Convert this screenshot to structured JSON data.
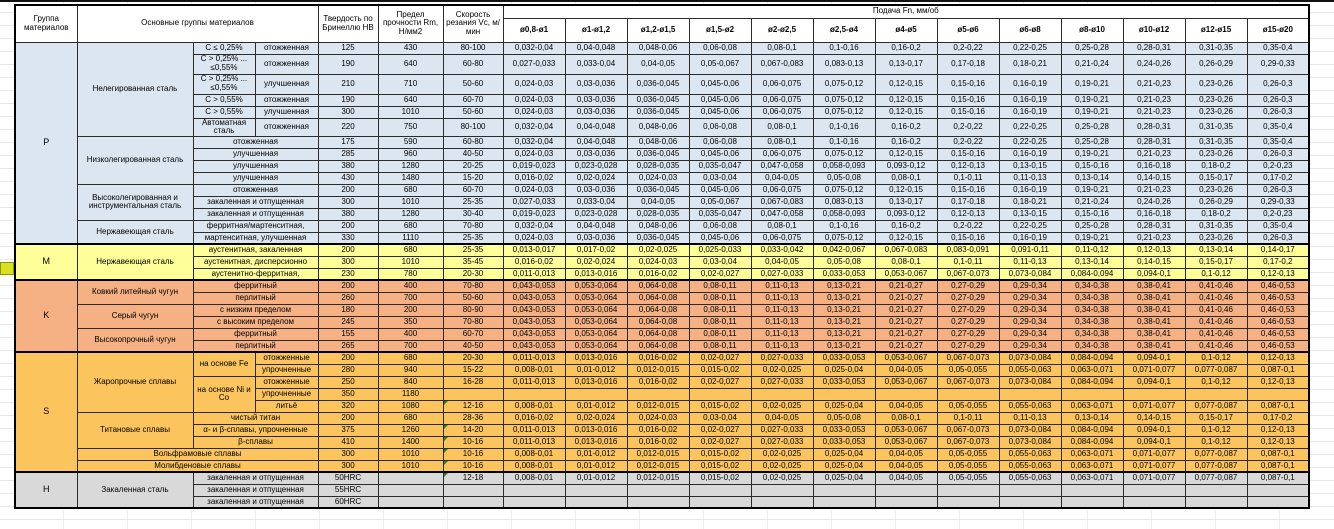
{
  "header": {
    "col_group": "Группа материалов",
    "col_main": "Основные группы материалов",
    "col_hb": "Твердость по Бринеллю НВ",
    "col_rm": "Предел прочности Rm, Н/мм2",
    "col_vc": "Скорость резания Vc, м/мин",
    "col_feed": "Подача Fn, мм/об",
    "diameters": [
      "ø0,8-ø1",
      "ø1-ø1,2",
      "ø1,2-ø1,5",
      "ø1,5-ø2",
      "ø2-ø2,5",
      "ø2,5-ø4",
      "ø4-ø5",
      "ø5-ø6",
      "ø6-ø8",
      "ø8-ø10",
      "ø10-ø12",
      "ø12-ø15",
      "ø15-ø20"
    ]
  },
  "colors": {
    "group_p": "#dce6f1",
    "group_m": "#ffff99",
    "group_k": "#f5b183",
    "group_s": "#fcc45c",
    "group_h": "#d9d9d9",
    "note_triangle": "#2e7d32",
    "margin_highlight": "#d9e021"
  },
  "table": {
    "feed_sets": {
      "FA": [
        "0,032-0,04",
        "0,04-0,048",
        "0,048-0,06",
        "0,06-0,08",
        "0,08-0,1",
        "0,1-0,16",
        "0,16-0,2",
        "0,2-0,22",
        "0,22-0,25",
        "0,25-0,28",
        "0,28-0,31",
        "0,31-0,35",
        "0,35-0,4"
      ],
      "FB": [
        "0,027-0,033",
        "0,033-0,04",
        "0,04-0,05",
        "0,05-0,067",
        "0,067-0,083",
        "0,083-0,13",
        "0,13-0,17",
        "0,17-0,18",
        "0,18-0,21",
        "0,21-0,24",
        "0,24-0,26",
        "0,26-0,29",
        "0,29-0,33"
      ],
      "FC": [
        "0,024-0,03",
        "0,03-0,036",
        "0,036-0,045",
        "0,045-0,06",
        "0,06-0,075",
        "0,075-0,12",
        "0,12-0,15",
        "0,15-0,16",
        "0,16-0,19",
        "0,19-0,21",
        "0,21-0,23",
        "0,23-0,26",
        "0,26-0,3"
      ],
      "FD": [
        "0,019-0,023",
        "0,023-0,028",
        "0,028-0,035",
        "0,035-0,047",
        "0,047-0,058",
        "0,058-0,093",
        "0,093-0,12",
        "0,12-0,13",
        "0,13-0,15",
        "0,15-0,16",
        "0,16-0,18",
        "0,18-0,2",
        "0,2-0,23"
      ],
      "FE": [
        "0,016-0,02",
        "0,02-0,024",
        "0,024-0,03",
        "0,03-0,04",
        "0,04-0,05",
        "0,05-0,08",
        "0,08-0,1",
        "0,1-0,11",
        "0,11-0,13",
        "0,13-0,14",
        "0,14-0,15",
        "0,15-0,17",
        "0,17-0,2"
      ],
      "FM1": [
        "0,013-0,017",
        "0,017-0,02",
        "0,02-0,025",
        "0,025-0,033",
        "0,033-0,042",
        "0,042-0,067",
        "0,067-0,083",
        "0,083-0,091",
        "0,091-0,11",
        "0,11-0,12",
        "0,12-0,13",
        "0,13-0,14",
        "0,14-0,17"
      ],
      "FM3": [
        "0,011-0,013",
        "0,013-0,016",
        "0,016-0,02",
        "0,02-0,027",
        "0,027-0,033",
        "0,033-0,053",
        "0,053-0,067",
        "0,067-0,073",
        "0,073-0,084",
        "0,084-0,094",
        "0,094-0,1",
        "0,1-0,12",
        "0,12-0,13"
      ],
      "FK": [
        "0,043-0,053",
        "0,053-0,064",
        "0,064-0,08",
        "0,08-0,11",
        "0,11-0,13",
        "0,13-0,21",
        "0,21-0,27",
        "0,27-0,29",
        "0,29-0,34",
        "0,34-0,38",
        "0,38-0,41",
        "0,41-0,46",
        "0,46-0,53"
      ],
      "FS2": [
        "0,008-0,01",
        "0,01-0,012",
        "0,012-0,015",
        "0,015-0,02",
        "0,02-0,025",
        "0,025-0,04",
        "0,04-0,05",
        "0,05-0,055",
        "0,055-0,063",
        "0,063-0,071",
        "0,071-0,077",
        "0,077-0,087",
        "0,087-0,1"
      ],
      "BL": [
        "",
        "",
        "",
        "",
        "",
        "",
        "",
        "",
        "",
        "",
        "",
        "",
        ""
      ]
    },
    "rows": [
      {
        "g": "p",
        "cells": [
          {
            "t": "P",
            "rs": 15,
            "lbl": 1
          },
          {
            "t": "Нелегированная сталь",
            "rs": 6
          },
          {
            "t": "C ≤ 0,25%"
          },
          {
            "t": "отожженная"
          }
        ],
        "hb": "125",
        "rm": "430",
        "vc": "80-100",
        "f": "FA"
      },
      {
        "g": "p",
        "h": "tall",
        "cells": [
          {
            "t": "C > 0,25% ... ≤0,55%"
          },
          {
            "t": "отожженная"
          }
        ],
        "hb": "190",
        "rm": "640",
        "vc": "60-80",
        "f": "FB"
      },
      {
        "g": "p",
        "h": "tall",
        "cells": [
          {
            "t": "C > 0,25% ... ≤0,55%"
          },
          {
            "t": "улучшенная"
          }
        ],
        "hb": "210",
        "rm": "710",
        "vc": "50-60",
        "f": "FC"
      },
      {
        "g": "p",
        "cells": [
          {
            "t": "C > 0,55%"
          },
          {
            "t": "отожженная"
          }
        ],
        "hb": "190",
        "rm": "640",
        "vc": "60-70",
        "f": "FC"
      },
      {
        "g": "p",
        "cells": [
          {
            "t": "C > 0,55%"
          },
          {
            "t": "улучшенная"
          }
        ],
        "hb": "300",
        "rm": "1010",
        "vc": "50-60",
        "f": "FC"
      },
      {
        "g": "p",
        "h": "med",
        "cells": [
          {
            "t": "Автоматная сталь"
          },
          {
            "t": "отожженная"
          }
        ],
        "hb": "220",
        "rm": "750",
        "vc": "80-100",
        "f": "FA"
      },
      {
        "g": "p",
        "cells": [
          {
            "t": "Низколегированная сталь",
            "rs": 4
          },
          {
            "t": "отожженная",
            "cs": 2
          }
        ],
        "hb": "175",
        "rm": "590",
        "vc": "60-80",
        "f": "FA"
      },
      {
        "g": "p",
        "cells": [
          {
            "t": "улучшенная",
            "cs": 2
          }
        ],
        "hb": "285",
        "rm": "960",
        "vc": "40-50",
        "f": "FC"
      },
      {
        "g": "p",
        "cells": [
          {
            "t": "улучшенная",
            "cs": 2
          }
        ],
        "hb": "380",
        "rm": "1280",
        "vc": "20-25",
        "f": "FD"
      },
      {
        "g": "p",
        "cells": [
          {
            "t": "улучшенная",
            "cs": 2
          }
        ],
        "hb": "430",
        "rm": "1480",
        "vc": "15-20",
        "f": "FE"
      },
      {
        "g": "p",
        "cells": [
          {
            "t": "Высоколегированная и инструментальная сталь",
            "rs": 3
          },
          {
            "t": "отожженная",
            "cs": 2
          }
        ],
        "hb": "200",
        "rm": "680",
        "vc": "60-70",
        "f": "FC"
      },
      {
        "g": "p",
        "cells": [
          {
            "t": "закаленная и отпущенная",
            "cs": 2
          }
        ],
        "hb": "300",
        "rm": "1010",
        "vc": "25-35",
        "f": "FB"
      },
      {
        "g": "p",
        "cells": [
          {
            "t": "закаленная и отпущенная",
            "cs": 2
          }
        ],
        "hb": "380",
        "rm": "1280",
        "vc": "30-40",
        "f": "FD"
      },
      {
        "g": "p",
        "cells": [
          {
            "t": "Нержавеющая сталь",
            "rs": 2
          },
          {
            "t": "ферритная/мартенситная,",
            "cs": 2
          }
        ],
        "hb": "200",
        "rm": "680",
        "vc": "70-80",
        "f": "FA"
      },
      {
        "g": "p",
        "cells": [
          {
            "t": "мартенситная, улучшенная",
            "cs": 2
          }
        ],
        "hb": "330",
        "rm": "1110",
        "vc": "25-35",
        "f": "FC"
      },
      {
        "g": "m",
        "sep": 1,
        "cells": [
          {
            "t": "M",
            "rs": 3,
            "lbl": 1
          },
          {
            "t": "Нержавеющая сталь",
            "rs": 3
          },
          {
            "t": "аустенитная, закаленная",
            "cs": 2
          }
        ],
        "hb": "200",
        "rm": "680",
        "vc": "25-35",
        "f": "FM1"
      },
      {
        "g": "m",
        "cells": [
          {
            "t": "аустенитная, дисперсионно",
            "cs": 2
          }
        ],
        "hb": "300",
        "rm": "1010",
        "vc": "35-45",
        "f": "FE"
      },
      {
        "g": "m",
        "cells": [
          {
            "t": "аустенитно-ферритная,",
            "cs": 2
          }
        ],
        "hb": "230",
        "rm": "780",
        "vc": "20-30",
        "f": "FM3"
      },
      {
        "g": "k",
        "sep": 1,
        "cells": [
          {
            "t": "K",
            "rs": 6,
            "lbl": 1
          },
          {
            "t": "Ковкий литейный чугун",
            "rs": 2
          },
          {
            "t": "ферритный",
            "cs": 2
          }
        ],
        "hb": "200",
        "rm": "400",
        "vc": "70-80",
        "f": "FK"
      },
      {
        "g": "k",
        "cells": [
          {
            "t": "перлитный",
            "cs": 2
          }
        ],
        "hb": "260",
        "rm": "700",
        "vc": "50-60",
        "f": "FK"
      },
      {
        "g": "k",
        "cells": [
          {
            "t": "Серый чугун",
            "rs": 2
          },
          {
            "t": "с низким пределом",
            "cs": 2
          }
        ],
        "hb": "180",
        "rm": "200",
        "vc": "80-90",
        "f": "FK"
      },
      {
        "g": "k",
        "cells": [
          {
            "t": "с высоким пределом",
            "cs": 2
          }
        ],
        "hb": "245",
        "rm": "350",
        "vc": "70-80",
        "f": "FK"
      },
      {
        "g": "k",
        "cells": [
          {
            "t": "Высокопрочный чугун",
            "rs": 2
          },
          {
            "t": "ферритный",
            "cs": 2
          }
        ],
        "hb": "155",
        "rm": "400",
        "vc": "60-70",
        "f": "FK"
      },
      {
        "g": "k",
        "cells": [
          {
            "t": "перлитный",
            "cs": 2
          }
        ],
        "hb": "265",
        "rm": "700",
        "vc": "40-50",
        "f": "FK"
      },
      {
        "g": "s",
        "sep": 1,
        "cells": [
          {
            "t": "S",
            "rs": 10,
            "lbl": 1
          },
          {
            "t": "Жаропрочные сплавы",
            "rs": 5
          },
          {
            "t": "на основе Fe",
            "rs": 2
          },
          {
            "t": "отожженные"
          }
        ],
        "hb": "200",
        "rm": "680",
        "vc": "20-30",
        "f": "FM3"
      },
      {
        "g": "s",
        "cells": [
          {
            "t": "упрочненные"
          }
        ],
        "hb": "280",
        "rm": "940",
        "vc": "15-22",
        "f": "FS2"
      },
      {
        "g": "s",
        "cells": [
          {
            "t": "на основе Ni и Со",
            "rs": 3
          },
          {
            "t": "отожженные"
          }
        ],
        "hb": "250",
        "rm": "840",
        "vc": "16-28",
        "f": "FM3"
      },
      {
        "g": "s",
        "cells": [
          {
            "t": "упрочненные"
          }
        ],
        "hb": "350",
        "rm": "1180",
        "vc": "",
        "f": "BL"
      },
      {
        "g": "s",
        "cells": [
          {
            "t": "литьё"
          }
        ],
        "hb": "320",
        "rm": "1080",
        "vc": "12-16",
        "note": 1,
        "f": "FS2"
      },
      {
        "g": "s",
        "cells": [
          {
            "t": "Титановые сплавы",
            "rs": 3
          },
          {
            "t": "чистый титан",
            "cs": 2
          }
        ],
        "hb": "200",
        "rm": "680",
        "vc": "28-36",
        "f": "FE"
      },
      {
        "g": "s",
        "cells": [
          {
            "t": "α- и β-сплавы, упрочненные",
            "cs": 2
          }
        ],
        "hb": "375",
        "rm": "1260",
        "vc": "14-20",
        "note": 1,
        "f": "FM3"
      },
      {
        "g": "s",
        "cells": [
          {
            "t": "β-сплавы",
            "cs": 2
          }
        ],
        "hb": "410",
        "rm": "1400",
        "vc": "10-16",
        "note": 1,
        "f": "FM3"
      },
      {
        "g": "s",
        "cells": [
          {
            "t": "Вольфрамовые сплавы",
            "cs": 3
          }
        ],
        "hb": "300",
        "rm": "1010",
        "vc": "10-16",
        "note": 1,
        "f": "FS2"
      },
      {
        "g": "s",
        "cells": [
          {
            "t": "Молибденовые сплавы",
            "cs": 3
          }
        ],
        "hb": "300",
        "rm": "1010",
        "vc": "10-16",
        "note": 1,
        "f": "FS2"
      },
      {
        "g": "h",
        "sep": 1,
        "cells": [
          {
            "t": "H",
            "rs": 3,
            "lbl": 1
          },
          {
            "t": "Закаленная сталь",
            "rs": 3
          },
          {
            "t": "закаленная и отпущенная",
            "cs": 2
          }
        ],
        "hb": "50HRC",
        "rm": "",
        "vc": "12-18",
        "note": 1,
        "f": "FS2"
      },
      {
        "g": "h",
        "cells": [
          {
            "t": "закаленная и отпущенная",
            "cs": 2
          }
        ],
        "hb": "55HRC",
        "rm": "",
        "vc": "",
        "f": "BL"
      },
      {
        "g": "h",
        "cells": [
          {
            "t": "закаленная и отпущенная",
            "cs": 2
          }
        ],
        "hb": "60HRC",
        "rm": "",
        "vc": "",
        "f": "BL"
      }
    ]
  }
}
